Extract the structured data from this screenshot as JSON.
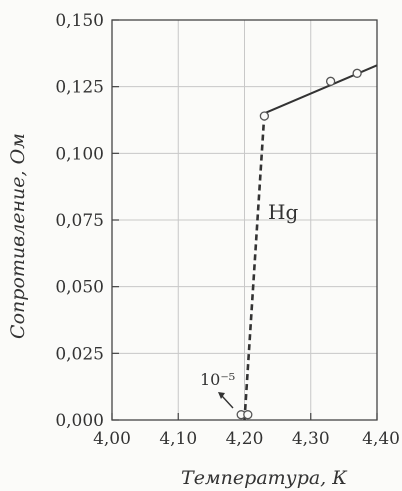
{
  "chart_data": {
    "type": "line",
    "title": "",
    "xlabel": "Температура, К",
    "ylabel": "Сопротивление, Ом",
    "xlim": [
      4.0,
      4.4
    ],
    "ylim": [
      0.0,
      0.15
    ],
    "grid": true,
    "x_ticks": [
      "4,00",
      "4,10",
      "4,20",
      "4,30",
      "4,40"
    ],
    "y_ticks": [
      "0,000",
      "0,025",
      "0,050",
      "0,075",
      "0,100",
      "0,125",
      "0,150"
    ],
    "series": [
      {
        "style": "solid",
        "x": [
          4.23,
          4.4
        ],
        "y": [
          0.115,
          0.133
        ]
      },
      {
        "style": "dashed",
        "x": [
          4.2,
          4.23
        ],
        "y": [
          0.0,
          0.115
        ]
      }
    ],
    "points": {
      "x": [
        4.195,
        4.205,
        4.23,
        4.33,
        4.37
      ],
      "y": [
        0.002,
        0.002,
        0.114,
        0.127,
        0.13
      ]
    },
    "annotations": {
      "material": "Hg",
      "small_value": "10⁻⁵"
    },
    "colors": {
      "line": "#333333",
      "grid": "#c8c8c8",
      "background": "#fbfbf9"
    }
  }
}
